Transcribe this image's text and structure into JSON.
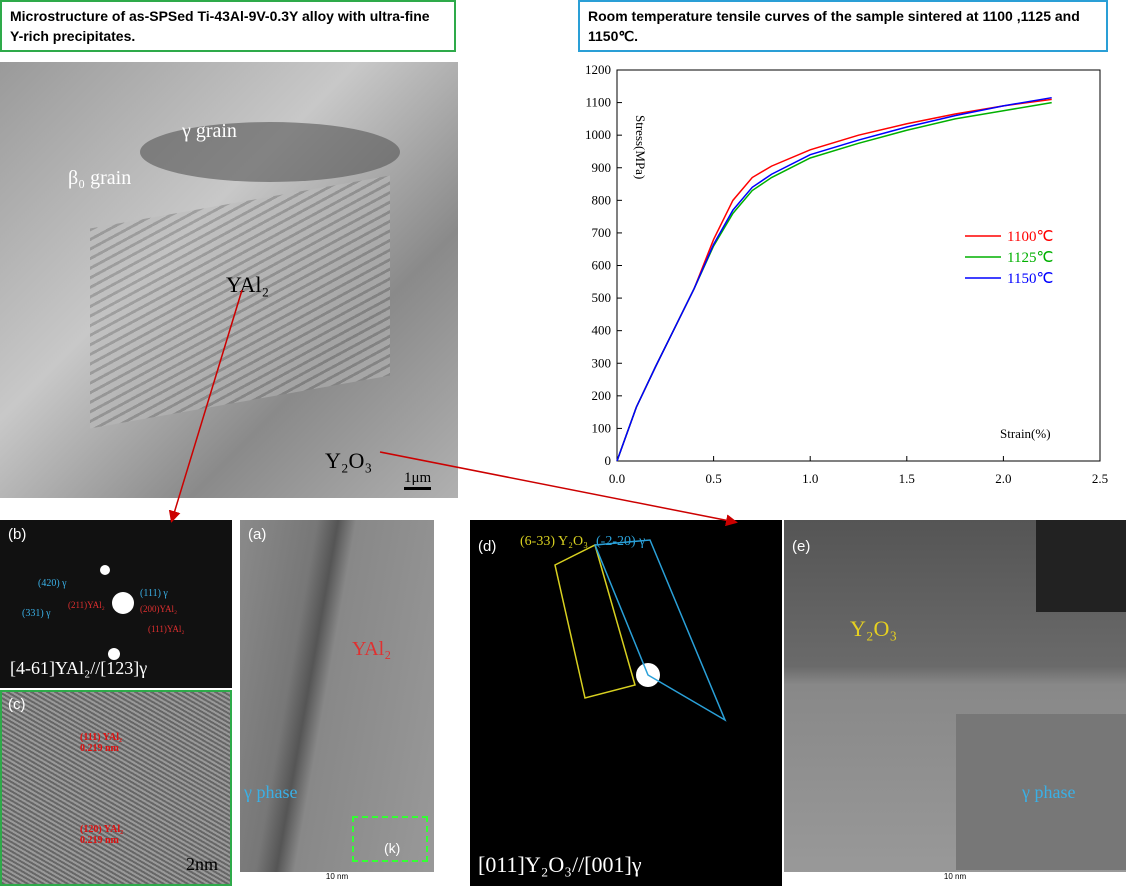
{
  "left_caption": "Microstructure of as-SPSed Ti-43Al-9V-0.3Y alloy with ultra-fine Y-rich precipitates.",
  "micrograph": {
    "gamma_grain": "γ grain",
    "beta_grain": "β₀ grain",
    "yal2": "YAl₂",
    "y2o3": "Y₂O₃",
    "scale": "1μm"
  },
  "panel_b": {
    "label": "(b)",
    "zone": "[4-61]YAl₂//[123]γ",
    "spot1": "(420) γ",
    "spot2": "(331) γ",
    "spot3": "(111) γ",
    "spot4": "(211)YAl₂",
    "spot5": "(200)YAl₂",
    "spot6": "(111)YAl₂"
  },
  "panel_c": {
    "label": "(c)",
    "plane1": "(111) YAl₂ 0.219 nm",
    "plane2": "(120) YAl₂ 0.219 nm",
    "scale": "2nm"
  },
  "panel_a": {
    "label": "(a)",
    "phase1": "YAl₂",
    "phase2": "γ phase",
    "box": "(k)",
    "scale": "10 nm"
  },
  "panel_d": {
    "label": "(d)",
    "spot1": "(6-33) Y₂O₃",
    "spot2": "(-2-20) γ",
    "zone": "[011]Y₂O₃//[001]γ"
  },
  "panel_e": {
    "label": "(e)",
    "phase1": "Y₂O₃",
    "phase2": "γ phase",
    "scale": "10 nm"
  },
  "chart_data": {
    "type": "line",
    "title": "Room temperature tensile curves of the sample sintered at 1100 ,1125 and 1150℃.",
    "x_label": "Strain(%)",
    "y_label": "Stress(MPa)",
    "x": [
      0,
      0.1,
      0.2,
      0.3,
      0.4,
      0.5,
      0.6,
      0.7,
      0.8,
      1.0,
      1.25,
      1.5,
      1.75,
      2.0,
      2.25
    ],
    "series": [
      {
        "name": "1100℃",
        "color": "#ff0000",
        "values": [
          0,
          165,
          290,
          410,
          530,
          680,
          800,
          870,
          905,
          955,
          1000,
          1035,
          1065,
          1090,
          1110
        ]
      },
      {
        "name": "1125℃",
        "color": "#00b000",
        "values": [
          0,
          165,
          290,
          410,
          530,
          660,
          760,
          830,
          870,
          930,
          975,
          1015,
          1050,
          1075,
          1100
        ]
      },
      {
        "name": "1150℃",
        "color": "#0000ff",
        "values": [
          0,
          165,
          290,
          410,
          530,
          665,
          770,
          840,
          880,
          940,
          985,
          1025,
          1060,
          1090,
          1115
        ]
      }
    ],
    "xlim": [
      0,
      2.5
    ],
    "xticks": [
      {
        "value": 0,
        "label": "0.0"
      },
      {
        "value": 0.5,
        "label": "0.5"
      },
      {
        "value": 1,
        "label": "1.0"
      },
      {
        "value": 1.5,
        "label": "1.5"
      },
      {
        "value": 2,
        "label": "2.0"
      },
      {
        "value": 2.5,
        "label": "2.5"
      }
    ],
    "ylim": [
      0,
      1200
    ],
    "yticks": [
      0,
      100,
      200,
      300,
      400,
      500,
      600,
      700,
      800,
      900,
      1000,
      1100,
      1200
    ],
    "legend": "right"
  }
}
